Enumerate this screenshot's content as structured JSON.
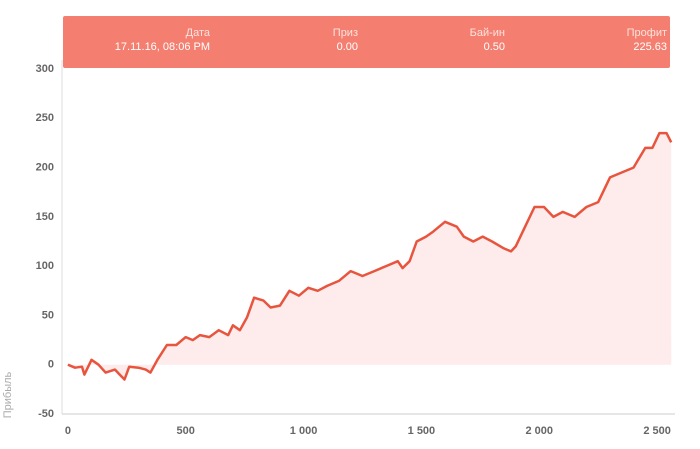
{
  "chart_data": {
    "type": "line",
    "y_label": "Прибыль",
    "x": [
      0,
      30,
      60,
      70,
      100,
      130,
      160,
      200,
      220,
      240,
      260,
      300,
      330,
      350,
      380,
      420,
      460,
      500,
      530,
      560,
      600,
      640,
      680,
      700,
      730,
      760,
      790,
      830,
      860,
      900,
      940,
      980,
      1020,
      1060,
      1100,
      1150,
      1200,
      1250,
      1300,
      1350,
      1400,
      1420,
      1450,
      1480,
      1520,
      1550,
      1600,
      1650,
      1680,
      1720,
      1760,
      1800,
      1850,
      1880,
      1900,
      1940,
      1980,
      2020,
      2060,
      2100,
      2150,
      2200,
      2250,
      2300,
      2350,
      2400,
      2450,
      2480,
      2510,
      2540,
      2560
    ],
    "series": [
      {
        "name": "Профит",
        "color": "#e8553f",
        "fill": "#fdeceb",
        "values": [
          0,
          -3,
          -2,
          -10,
          5,
          0,
          -8,
          -5,
          -10,
          -15,
          -2,
          -3,
          -5,
          -8,
          5,
          20,
          20,
          28,
          25,
          30,
          28,
          35,
          30,
          40,
          35,
          48,
          68,
          65,
          58,
          60,
          75,
          70,
          78,
          75,
          80,
          85,
          95,
          90,
          95,
          100,
          105,
          98,
          105,
          125,
          130,
          135,
          145,
          140,
          130,
          125,
          130,
          125,
          118,
          115,
          120,
          140,
          160,
          160,
          150,
          155,
          150,
          160,
          165,
          190,
          195,
          200,
          220,
          220,
          235,
          235,
          225.63
        ]
      }
    ],
    "xlim": [
      -25,
      2576
    ],
    "ylim": [
      -50,
      300
    ],
    "xticks": [
      0,
      500,
      {
        "value": 1000,
        "label": "1 000"
      },
      {
        "value": 1500,
        "label": "1 500"
      },
      {
        "value": 2000,
        "label": "2 000"
      },
      {
        "value": 2500,
        "label": "2 500"
      }
    ],
    "yticks": [
      -50,
      0,
      50,
      100,
      150,
      200,
      250,
      300
    ],
    "tooltip": {
      "fields": [
        {
          "label": "Дата",
          "value": "17.11.16, 08:06 PM"
        },
        {
          "label": "Приз",
          "value": "0.00"
        },
        {
          "label": "Бай-ин",
          "value": "0.50"
        },
        {
          "label": "Профит",
          "value": "225.63"
        }
      ]
    }
  }
}
